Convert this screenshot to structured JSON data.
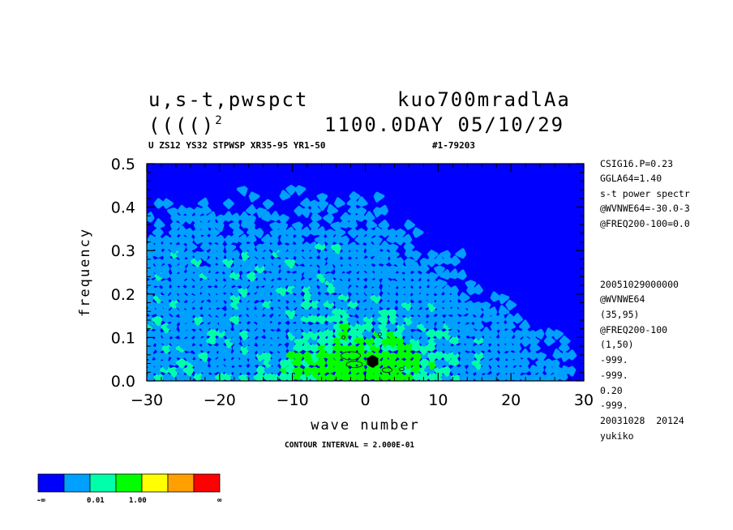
{
  "header": {
    "line1_left": "u,s-t,pwspct",
    "line1_right": "kuo700mradlAa",
    "line2_left": "(((()",
    "line2_sup": "2",
    "line2_right": "1100.0DAY 05/10/29",
    "subtitle_left": "U ZS12 YS32 STPWSP XR35-95 YR1-50",
    "subtitle_right": "#1-79203"
  },
  "side_info": {
    "top": [
      "CSIG16.P=0.23",
      "GGLA64=1.40",
      "s-t power spectr",
      "@WVNWE64=-30.0-3",
      "@FREQ200-100=0.0"
    ],
    "bottom": [
      "20051029000000",
      "@WVNWE64",
      "(35,95)",
      "@FREQ200-100",
      "(1,50)",
      "-999.",
      "-999.",
      "0.20",
      "-999.",
      "20031028  20124",
      "yukiko"
    ]
  },
  "contour_note": "CONTOUR INTERVAL = 2.000E-01",
  "colors": {
    "level0": "#0000ff",
    "level1": "#00a0ff",
    "level2": "#00ffaa",
    "level3": "#00ff00",
    "level4": "#ffff00",
    "level5": "#ffa000",
    "level6": "#ff0000"
  },
  "colorbar": {
    "colors": [
      "#0000ff",
      "#00a0ff",
      "#00ffaa",
      "#00ff00",
      "#ffff00",
      "#ffa000",
      "#ff0000"
    ],
    "labels": [
      "-∞",
      "0.01",
      "1.00",
      "∞"
    ]
  },
  "chart_data": {
    "type": "heatmap",
    "xlabel": "wave number",
    "ylabel": "frequency",
    "xlim": [
      -30,
      30
    ],
    "ylim": [
      0.0,
      0.5
    ],
    "xticks": [
      -30,
      -20,
      -10,
      0,
      10,
      20,
      30
    ],
    "xtick_labels": [
      "−30",
      "−20",
      "−10",
      "0",
      "10",
      "20",
      "30"
    ],
    "yticks": [
      0.0,
      0.1,
      0.2,
      0.3,
      0.4,
      0.5
    ],
    "ytick_labels": [
      "0.0",
      "0.1",
      "0.2",
      "0.3",
      "0.4",
      "0.5"
    ],
    "levels": [
      "-∞",
      "0.01",
      "1.00",
      "∞"
    ],
    "contour_interval": 0.2,
    "max_location": {
      "x": 1,
      "y": 0.045
    }
  }
}
